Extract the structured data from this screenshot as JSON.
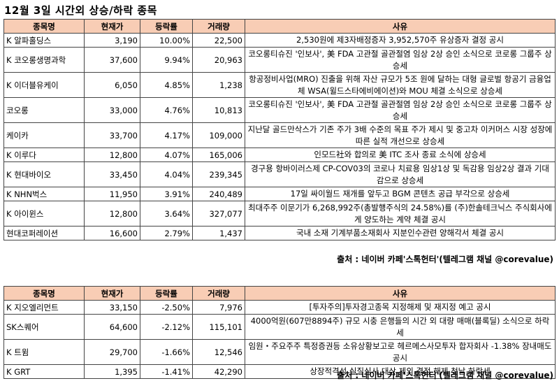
{
  "title": "12월 3일  시간외 상승/하락 종목",
  "headers": {
    "name": "종목명",
    "price": "현재가",
    "change": "등락률",
    "volume": "거래량",
    "reason": "사유"
  },
  "rising": [
    {
      "name": "K 알파홀딩스",
      "price": "3,190",
      "change": "10.00%",
      "volume": "22,500",
      "reason": "2,530원에 제3자배정증자 3,952,570주 유상증자 결정 공시"
    },
    {
      "name": "K 코오롱생명과학",
      "price": "37,600",
      "change": "9.94%",
      "volume": "20,963",
      "reason": "코오롱티슈진 '인보사', 美 FDA 고관절 골관절염 임상 2상 승인 소식으로 코로롱 그룹주 상승세"
    },
    {
      "name": "K 이더블유케이",
      "price": "6,050",
      "change": "4.85%",
      "volume": "1,238",
      "reason": "항공정비사업(MRO) 진출을 위해 자산 규모가 5조 원에 달하는 대형 글로벌 항공기 금융업체 WSA(윌드스타에비에이션)와 MOU 체결 소식으로 상승세"
    },
    {
      "name": "코오롱",
      "price": "33,000",
      "change": "4.76%",
      "volume": "10,813",
      "reason": "코오롱티슈진 '인보사', 美 FDA 고관절 골관절염 임상 2상 승인 소식으로 코로롱 그룹주 상승세"
    },
    {
      "name": "케이카",
      "price": "33,700",
      "change": "4.17%",
      "volume": "109,000",
      "reason": "지난달 골드만삭스가 기존 주가 3배 수준의 목표 주가 제시 및 중고차 이커머스 시장 성장에 따른 실적 개선으로 상승세"
    },
    {
      "name": "K 이루다",
      "price": "12,800",
      "change": "4.07%",
      "volume": "165,006",
      "reason": "인모드社와 합의로 美 ITC 조사 종료 소식에 상승세"
    },
    {
      "name": "K 현대바이오",
      "price": "33,450",
      "change": "4.04%",
      "volume": "239,345",
      "reason": "경구용 항바이러스제 CP-COV03의 코로나 치료용 임상1상 및 독감용 임상2상 결과 기대감으로 상승세"
    },
    {
      "name": "K NHN벅스",
      "price": "11,950",
      "change": "3.91%",
      "volume": "240,489",
      "reason": "17일 싸이월드 재개를 앞두고 BGM 콘텐츠 공급 부각으로 상승세"
    },
    {
      "name": "K 아이윈스",
      "price": "12,800",
      "change": "3.64%",
      "volume": "327,077",
      "reason": "최대주주 이문기가 6,268,992주(총발행주식의 24.58%)를 (주)한솔테크닉스 주식회사에게 양도하는 계약 체결 공시"
    },
    {
      "name": "현대코퍼레이션",
      "price": "16,600",
      "change": "2.79%",
      "volume": "1,437",
      "reason": "국내 소재 기계부품소재회사 지분인수관련 양해각서 체결 공시"
    }
  ],
  "falling": [
    {
      "name": "K 지오엘리먼트",
      "price": "33,150",
      "change": "-2.50%",
      "volume": "7,976",
      "reason": "[투자주의]투자경고종목 지정해제 및 재지정 예고 공시"
    },
    {
      "name": "SK스퀘어",
      "price": "64,600",
      "change": "-2.12%",
      "volume": "115,101",
      "reason": "4000억원(607만8894주) 규모 시충 은행들의 시간 외 대량 매매(블록딜) 소식으로 하락세"
    },
    {
      "name": "K 트윔",
      "price": "29,700",
      "change": "-1.66%",
      "volume": "12,546",
      "reason": "임원・주요주주 특정증권등 소유상황보고로 헤르메스사모투자 합자회사 -1.38% 장내매도 공시"
    },
    {
      "name": "K GRT",
      "price": "1,395",
      "change": "-1.41%",
      "volume": "42,290",
      "reason": "상장적격성 실질심사 대상 제외 결정 해제 첫날 하락세"
    }
  ],
  "source": "출처 : 네이버 카페'스톡헌터'(텔레그램 채널 @corevalue)"
}
